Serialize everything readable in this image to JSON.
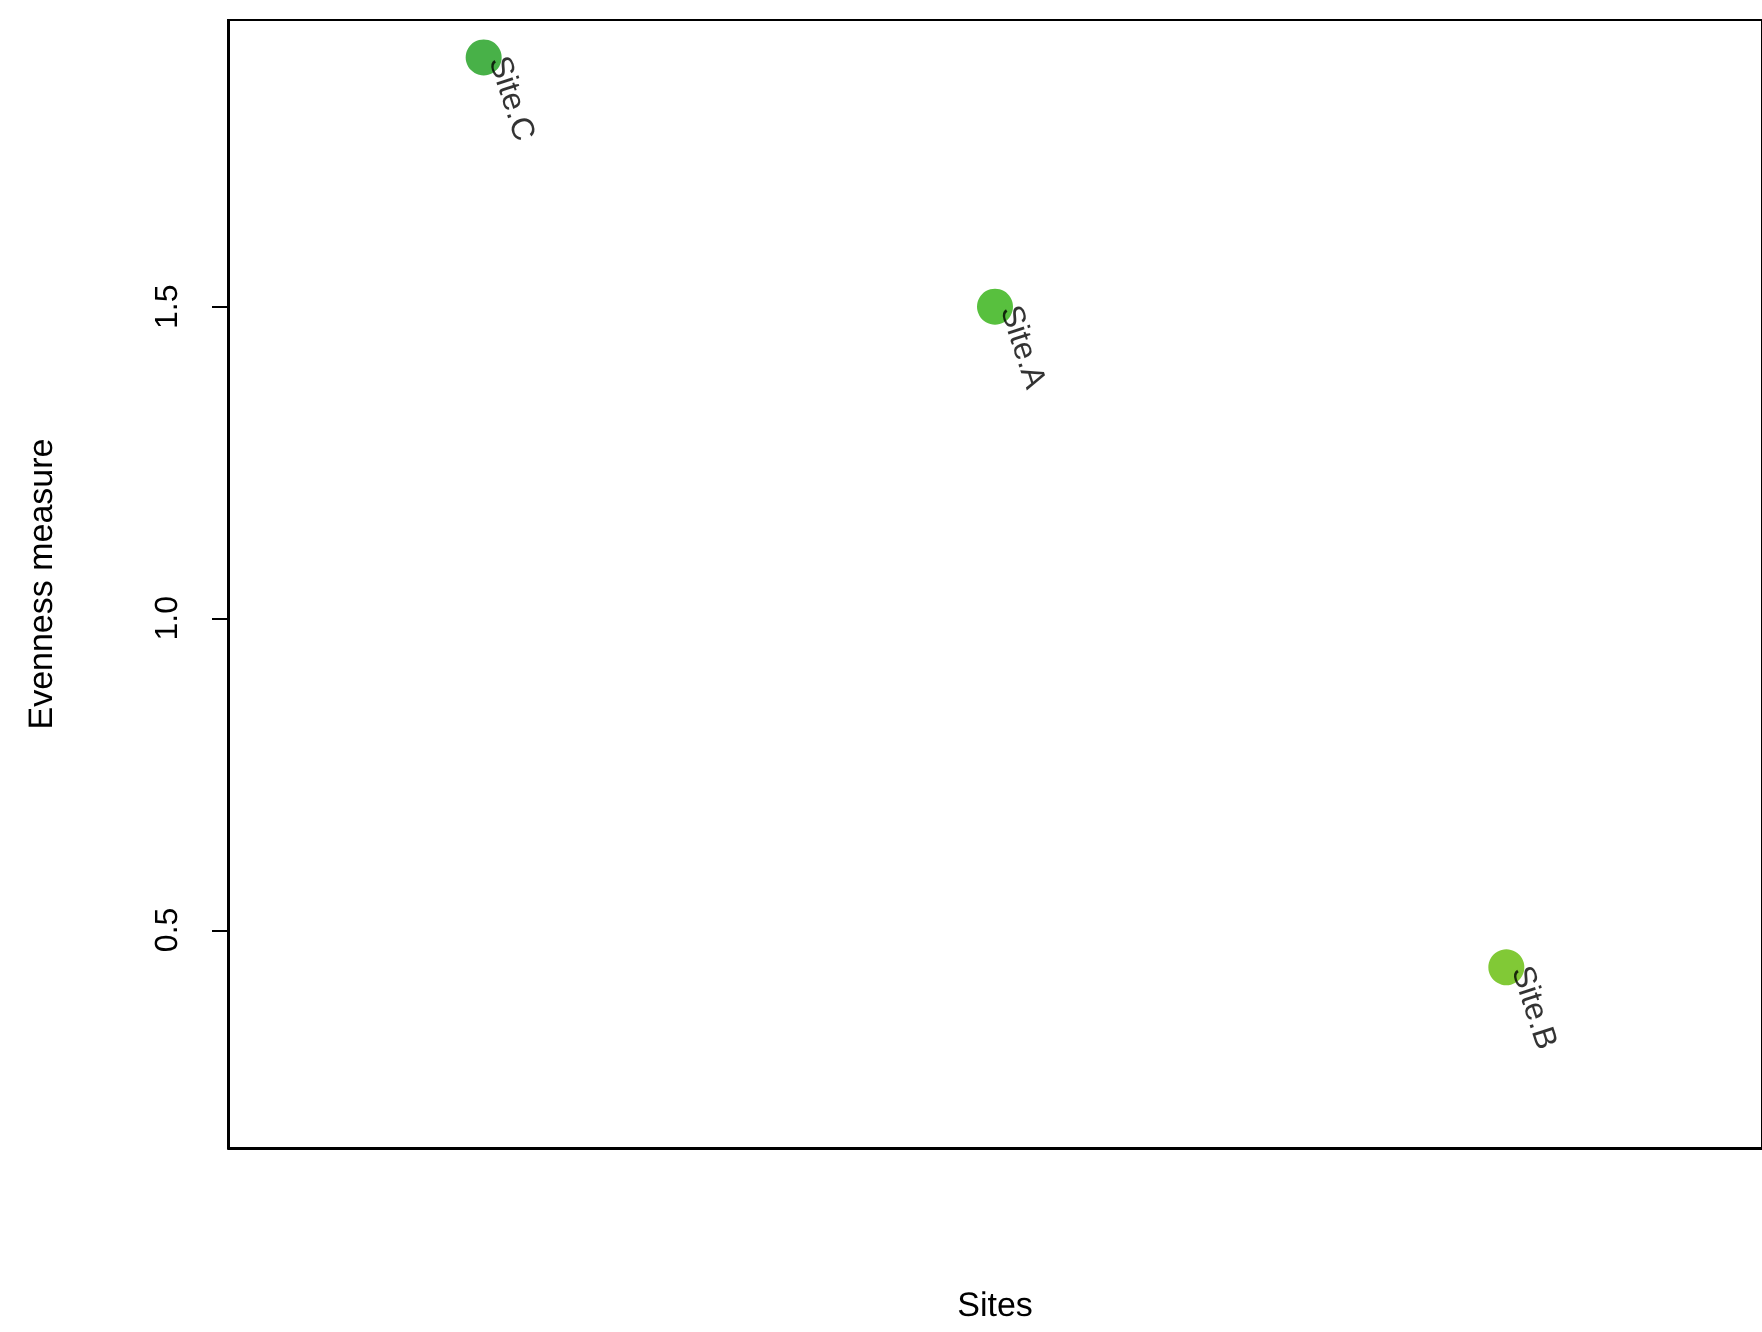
{
  "chart_data": {
    "type": "scatter",
    "xlabel": "Sites",
    "ylabel": "Evenness measure",
    "categories": [
      null,
      null,
      null
    ],
    "values": [
      1.9,
      1.5,
      0.44
    ],
    "value_labels": [
      "Site.C",
      "Site.A",
      "Site.B"
    ],
    "colors": [
      "#1a9e1a",
      "#2eb00e",
      "#62bb04"
    ],
    "ylim": [
      0.15,
      1.96
    ],
    "yticks": [
      0.5,
      {
        "value": 1,
        "label": "1.0"
      },
      1.5
    ],
    "tick_labels": "y",
    "grid": false,
    "marker": "circle"
  }
}
